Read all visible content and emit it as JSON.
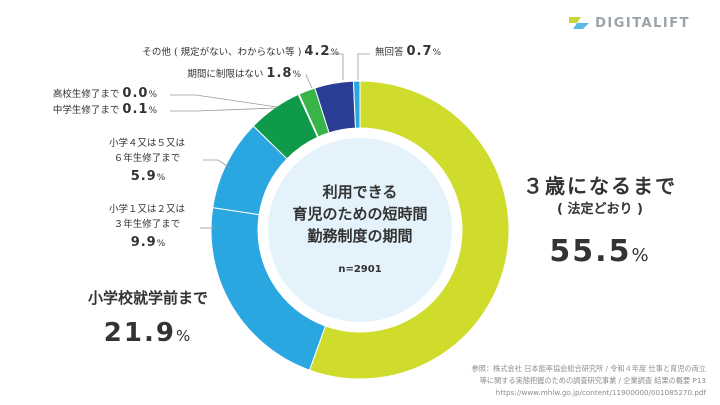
{
  "brand": {
    "name": "DIGITALIFT"
  },
  "chart_data": {
    "type": "pie",
    "variant": "donut",
    "title": "利用できる 育児のための短時間 勤務制度の期間",
    "title_lines": [
      "利用できる",
      "育児のための短時間",
      "勤務制度の期間"
    ],
    "n_label": "n=2901",
    "categories": [
      "3歳になるまで(法定どおり)",
      "小学校就学前まで",
      "小学1又は2又は3年生修了まで",
      "小学4又は5又は6年生修了まで",
      "中学生修了まで",
      "高校生修了まで",
      "期間に制限はない",
      "その他(規定がない、わからない等)",
      "無回答"
    ],
    "values": [
      55.5,
      21.9,
      9.9,
      5.9,
      0.1,
      0.0,
      1.8,
      4.2,
      0.7
    ],
    "colors": [
      "#cfdc2b",
      "#2aa6e0",
      "#2aa6e0",
      "#0f9a49",
      "#1a6fba",
      "#1a6fba",
      "#38b449",
      "#2a3f93",
      "#2aa6e0"
    ]
  },
  "labels": {
    "s1": {
      "line1": "３歳になるまで",
      "line2": "( 法定どおり )",
      "pct": "55.5",
      "unit": "%"
    },
    "s2": {
      "text": "小学校就学前まで",
      "pct": "21.9",
      "unit": "%"
    },
    "s3": {
      "line1": "小学１又は２又は",
      "line2": "３年生修了まで",
      "pct": "9.9",
      "unit": "%"
    },
    "s4": {
      "line1": "小学４又は５又は",
      "line2": "６年生修了まで",
      "pct": "5.9",
      "unit": "%"
    },
    "s5": {
      "text": "中学生修了まで",
      "pct": "0.1",
      "unit": "%"
    },
    "s6": {
      "text": "高校生修了まで",
      "pct": "0.0",
      "unit": "%"
    },
    "s7": {
      "text": "期間に制限はない",
      "pct": "1.8",
      "unit": "%"
    },
    "s8": {
      "text": "その他 ( 規定がない、わからない等 )",
      "pct": "4.2",
      "unit": "%"
    },
    "s9": {
      "text": "無回答",
      "pct": "0.7",
      "unit": "%"
    }
  },
  "source": {
    "line1": "参照：株式会社 日本能率協会総合研究所 / 令和４年度 仕事と育児の両立",
    "line2": "等に関する実態把握のための調査研究事業 / 企業調査 結果の概要 P13",
    "line3": "https://www.mhlw.go.jp/content/11900000/001085270.pdf"
  },
  "palette": {
    "leader": "#9a9a9a",
    "center_fill": "#e3f2fb",
    "logo": "#9aa3a9"
  }
}
